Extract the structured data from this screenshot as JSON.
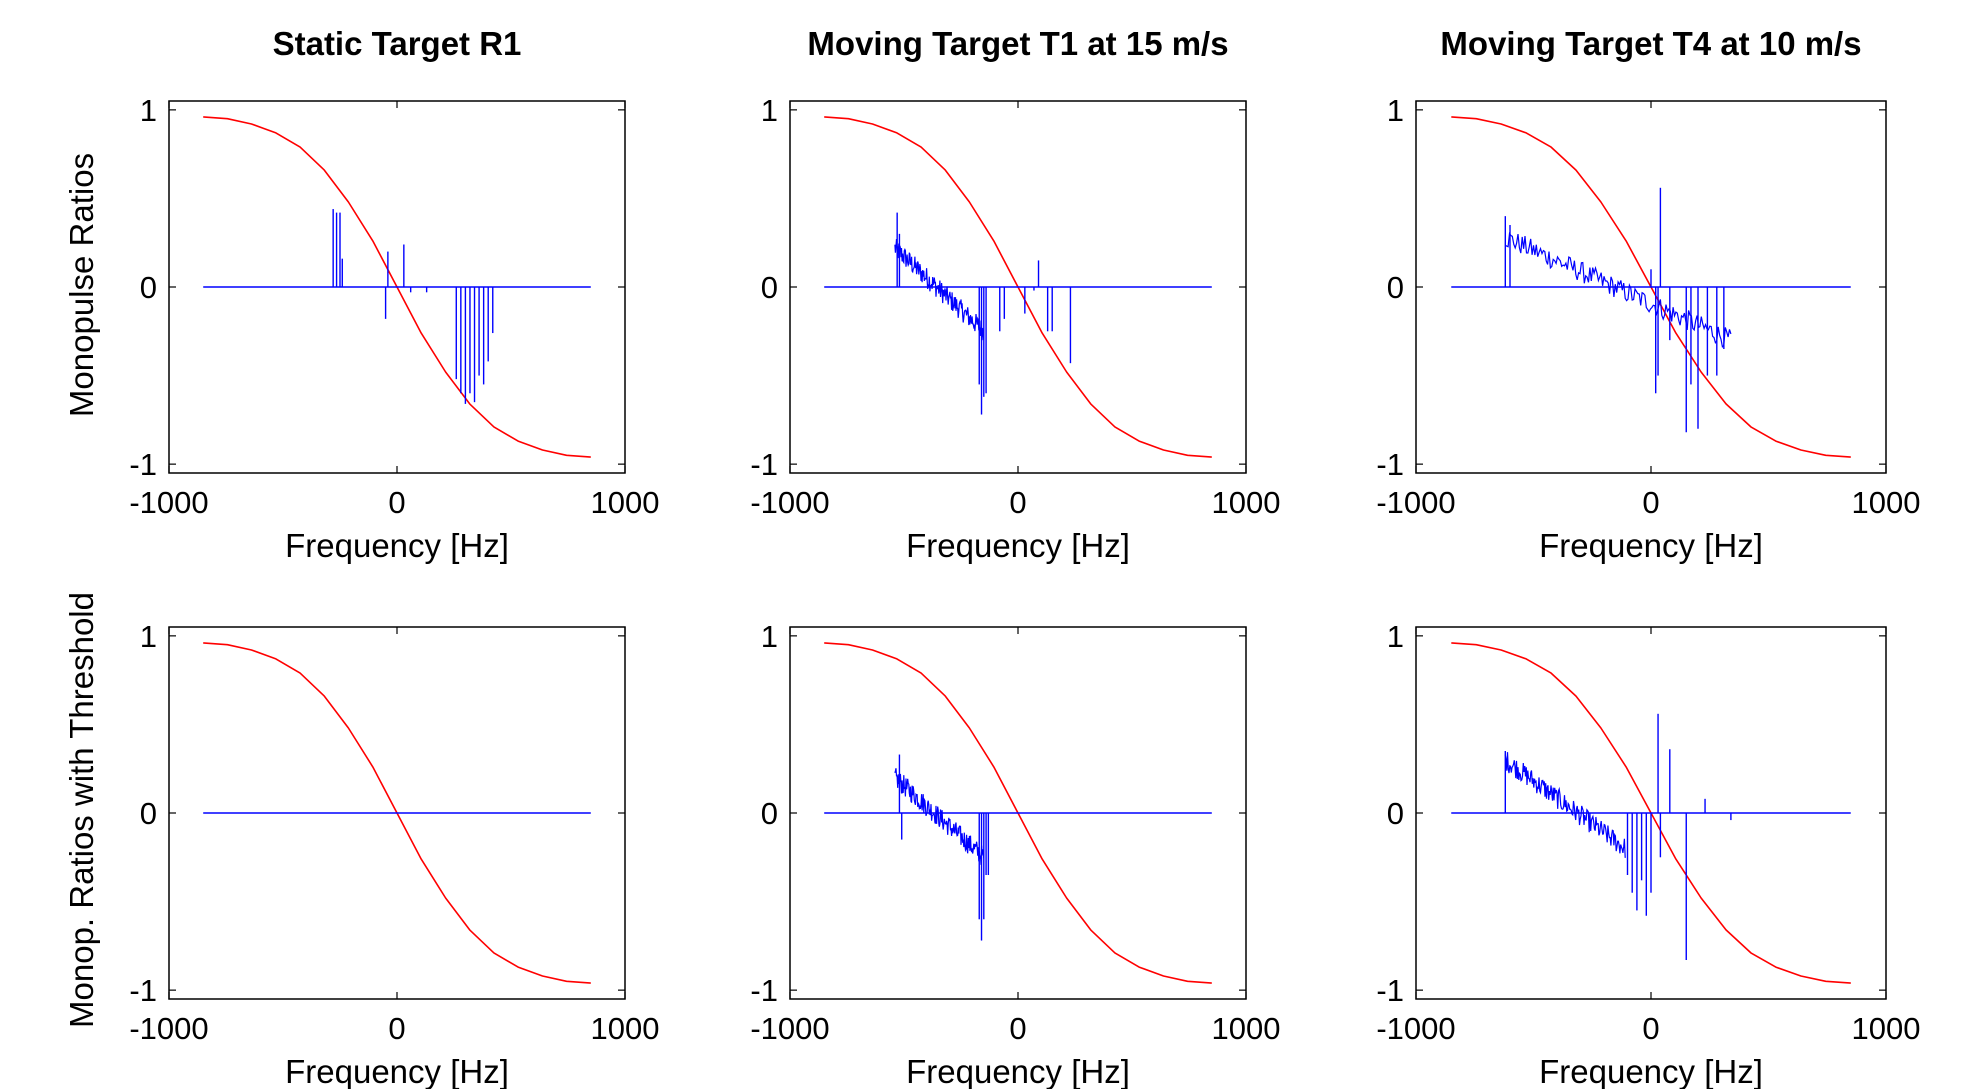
{
  "figure": {
    "row_ylabels": [
      "Monopulse Ratios",
      "Monop. Ratios with Threshold"
    ]
  },
  "chart_data": [
    {
      "type": "line",
      "title": "Static Target R1",
      "xlabel": "Frequency [Hz]",
      "ylabel": "Monopulse Ratios",
      "xlim": [
        -1000,
        1000
      ],
      "ylim": [
        -1.05,
        1.05
      ],
      "xticks": [
        "-1000",
        "0",
        "1000"
      ],
      "yticks": [
        "-1",
        "0",
        "1"
      ],
      "grid": false,
      "colors": {
        "reference": "#ff0000",
        "measured": "#0000ff"
      },
      "series": [
        {
          "x_start": -850,
          "x_end": 850,
          "values": [
            0.96,
            0.95,
            0.92,
            0.87,
            0.79,
            0.66,
            0.48,
            0.26,
            0.0,
            -0.26,
            -0.48,
            -0.66,
            -0.79,
            -0.87,
            -0.92,
            -0.95,
            -0.96
          ],
          "x": [
            -850,
            -744,
            -638,
            -531,
            -425,
            -319,
            -213,
            -106,
            0,
            106,
            213,
            319,
            425,
            531,
            638,
            744,
            850
          ]
        },
        {
          "x_start": -850,
          "x_end": 850,
          "spikes": [
            [
              -280,
              0.44
            ],
            [
              -265,
              0.42
            ],
            [
              -250,
              0.42
            ],
            [
              -240,
              0.16
            ],
            [
              -50,
              -0.18
            ],
            [
              -40,
              0.2
            ],
            [
              30,
              0.24
            ],
            [
              60,
              -0.03
            ],
            [
              130,
              -0.03
            ],
            [
              260,
              -0.52
            ],
            [
              280,
              -0.6
            ],
            [
              300,
              -0.66
            ],
            [
              320,
              -0.6
            ],
            [
              340,
              -0.65
            ],
            [
              360,
              -0.5
            ],
            [
              380,
              -0.55
            ],
            [
              400,
              -0.42
            ],
            [
              420,
              -0.26
            ]
          ]
        }
      ]
    },
    {
      "type": "line",
      "title": "Moving Target T1 at 15 m/s",
      "xlabel": "Frequency [Hz]",
      "ylabel": "",
      "xlim": [
        -1000,
        1000
      ],
      "ylim": [
        -1.05,
        1.05
      ],
      "xticks": [
        "-1000",
        "0",
        "1000"
      ],
      "yticks": [
        "-1",
        "0",
        "1"
      ],
      "grid": false,
      "colors": {
        "reference": "#ff0000",
        "measured": "#0000ff"
      },
      "series": [
        {
          "x_start": -850,
          "x_end": 850,
          "values": [
            0.96,
            0.95,
            0.92,
            0.87,
            0.79,
            0.66,
            0.48,
            0.26,
            0.0,
            -0.26,
            -0.48,
            -0.66,
            -0.79,
            -0.87,
            -0.92,
            -0.95,
            -0.96
          ],
          "x": [
            -850,
            -744,
            -638,
            -531,
            -425,
            -319,
            -213,
            -106,
            0,
            106,
            213,
            319,
            425,
            531,
            638,
            744,
            850
          ]
        },
        {
          "x_start": -850,
          "x_end": 850,
          "noise_from": -540,
          "noise_to": -150,
          "trend": [
            0.22,
            -0.25
          ],
          "spikes": [
            [
              -530,
              0.42
            ],
            [
              -520,
              0.3
            ],
            [
              -170,
              -0.55
            ],
            [
              -160,
              -0.72
            ],
            [
              -150,
              -0.62
            ],
            [
              -140,
              -0.6
            ],
            [
              -80,
              -0.25
            ],
            [
              -60,
              -0.18
            ],
            [
              30,
              -0.15
            ],
            [
              70,
              -0.02
            ],
            [
              90,
              0.15
            ],
            [
              130,
              -0.25
            ],
            [
              150,
              -0.25
            ],
            [
              230,
              -0.43
            ]
          ]
        }
      ]
    },
    {
      "type": "line",
      "title": "Moving Target T4 at 10 m/s",
      "xlabel": "Frequency [Hz]",
      "ylabel": "",
      "xlim": [
        -1000,
        1000
      ],
      "ylim": [
        -1.05,
        1.05
      ],
      "xticks": [
        "-1000",
        "0",
        "1000"
      ],
      "yticks": [
        "-1",
        "0",
        "1"
      ],
      "grid": false,
      "colors": {
        "reference": "#ff0000",
        "measured": "#0000ff"
      },
      "series": [
        {
          "x_start": -850,
          "x_end": 850,
          "values": [
            0.96,
            0.95,
            0.92,
            0.87,
            0.79,
            0.66,
            0.48,
            0.26,
            0.0,
            -0.26,
            -0.48,
            -0.66,
            -0.79,
            -0.87,
            -0.92,
            -0.95,
            -0.96
          ],
          "x": [
            -850,
            -744,
            -638,
            -531,
            -425,
            -319,
            -213,
            -106,
            0,
            106,
            213,
            319,
            425,
            531,
            638,
            744,
            850
          ]
        },
        {
          "x_start": -850,
          "x_end": 850,
          "noise_from": -620,
          "noise_to": 340,
          "trend": [
            0.28,
            -0.3
          ],
          "spikes": [
            [
              -620,
              0.4
            ],
            [
              -600,
              0.35
            ],
            [
              0,
              0.1
            ],
            [
              20,
              -0.6
            ],
            [
              30,
              -0.5
            ],
            [
              40,
              0.56
            ],
            [
              80,
              -0.3
            ],
            [
              150,
              -0.82
            ],
            [
              170,
              -0.55
            ],
            [
              200,
              -0.8
            ],
            [
              240,
              -0.5
            ],
            [
              280,
              -0.5
            ],
            [
              310,
              -0.35
            ]
          ]
        }
      ]
    },
    {
      "type": "line",
      "title": "",
      "xlabel": "Frequency [Hz]",
      "ylabel": "Monop. Ratios with Threshold",
      "xlim": [
        -1000,
        1000
      ],
      "ylim": [
        -1.05,
        1.05
      ],
      "xticks": [
        "-1000",
        "0",
        "1000"
      ],
      "yticks": [
        "-1",
        "0",
        "1"
      ],
      "grid": false,
      "colors": {
        "reference": "#ff0000",
        "measured": "#0000ff"
      },
      "series": [
        {
          "x_start": -850,
          "x_end": 850,
          "values": [
            0.96,
            0.95,
            0.92,
            0.87,
            0.79,
            0.66,
            0.48,
            0.26,
            0.0,
            -0.26,
            -0.48,
            -0.66,
            -0.79,
            -0.87,
            -0.92,
            -0.95,
            -0.96
          ],
          "x": [
            -850,
            -744,
            -638,
            -531,
            -425,
            -319,
            -213,
            -106,
            0,
            106,
            213,
            319,
            425,
            531,
            638,
            744,
            850
          ]
        },
        {
          "x_start": -850,
          "x_end": 850,
          "spikes": []
        }
      ]
    },
    {
      "type": "line",
      "title": "",
      "xlabel": "Frequency [Hz]",
      "ylabel": "",
      "xlim": [
        -1000,
        1000
      ],
      "ylim": [
        -1.05,
        1.05
      ],
      "xticks": [
        "-1000",
        "0",
        "1000"
      ],
      "yticks": [
        "-1",
        "0",
        "1"
      ],
      "grid": false,
      "colors": {
        "reference": "#ff0000",
        "measured": "#0000ff"
      },
      "series": [
        {
          "x_start": -850,
          "x_end": 850,
          "values": [
            0.96,
            0.95,
            0.92,
            0.87,
            0.79,
            0.66,
            0.48,
            0.26,
            0.0,
            -0.26,
            -0.48,
            -0.66,
            -0.79,
            -0.87,
            -0.92,
            -0.95,
            -0.96
          ],
          "x": [
            -850,
            -744,
            -638,
            -531,
            -425,
            -319,
            -213,
            -106,
            0,
            106,
            213,
            319,
            425,
            531,
            638,
            744,
            850
          ]
        },
        {
          "x_start": -850,
          "x_end": 850,
          "noise_from": -540,
          "noise_to": -150,
          "trend": [
            0.2,
            -0.25
          ],
          "spikes": [
            [
              -520,
              0.33
            ],
            [
              -510,
              -0.15
            ],
            [
              -170,
              -0.6
            ],
            [
              -160,
              -0.72
            ],
            [
              -150,
              -0.6
            ],
            [
              -140,
              -0.35
            ],
            [
              -130,
              -0.35
            ]
          ]
        }
      ]
    },
    {
      "type": "line",
      "title": "",
      "xlabel": "Frequency [Hz]",
      "ylabel": "",
      "xlim": [
        -1000,
        1000
      ],
      "ylim": [
        -1.05,
        1.05
      ],
      "xticks": [
        "-1000",
        "0",
        "1000"
      ],
      "yticks": [
        "-1",
        "0",
        "1"
      ],
      "grid": false,
      "colors": {
        "reference": "#ff0000",
        "measured": "#0000ff"
      },
      "series": [
        {
          "x_start": -850,
          "x_end": 850,
          "values": [
            0.96,
            0.95,
            0.92,
            0.87,
            0.79,
            0.66,
            0.48,
            0.26,
            0.0,
            -0.26,
            -0.48,
            -0.66,
            -0.79,
            -0.87,
            -0.92,
            -0.95,
            -0.96
          ],
          "x": [
            -850,
            -744,
            -638,
            -531,
            -425,
            -319,
            -213,
            -106,
            0,
            106,
            213,
            319,
            425,
            531,
            638,
            744,
            850
          ]
        },
        {
          "x_start": -850,
          "x_end": 850,
          "noise_from": -620,
          "noise_to": -110,
          "trend": [
            0.3,
            -0.2
          ],
          "spikes": [
            [
              -620,
              0.35
            ],
            [
              -100,
              -0.35
            ],
            [
              -80,
              -0.45
            ],
            [
              -60,
              -0.55
            ],
            [
              -40,
              -0.38
            ],
            [
              -20,
              -0.58
            ],
            [
              0,
              -0.45
            ],
            [
              30,
              0.56
            ],
            [
              40,
              -0.25
            ],
            [
              80,
              0.36
            ],
            [
              150,
              -0.83
            ],
            [
              230,
              0.08
            ],
            [
              340,
              -0.04
            ]
          ]
        }
      ]
    }
  ]
}
